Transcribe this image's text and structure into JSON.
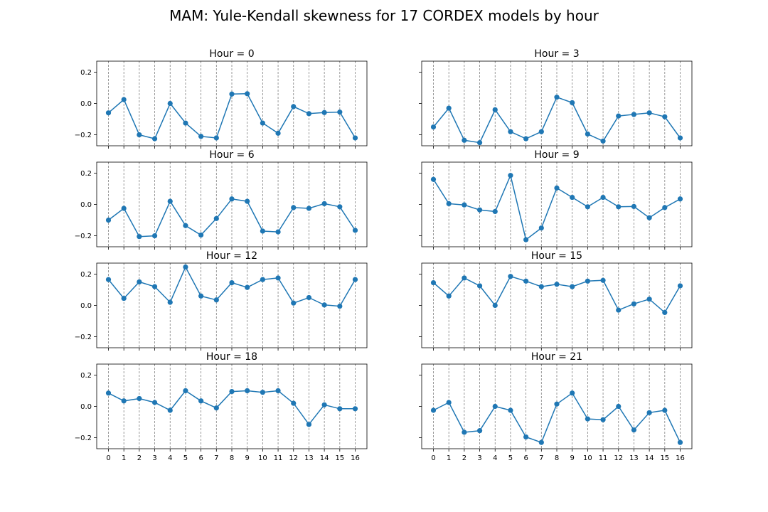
{
  "title": "MAM: Yule-Kendall skewness for 17 CORDEX models by hour",
  "chart_data": [
    {
      "type": "line",
      "title": "Hour = 0",
      "x": [
        0,
        1,
        2,
        3,
        4,
        5,
        6,
        7,
        8,
        9,
        10,
        11,
        12,
        13,
        14,
        15,
        16
      ],
      "values": [
        -0.06,
        0.025,
        -0.2,
        -0.225,
        0,
        -0.125,
        -0.21,
        -0.22,
        0.06,
        0.062,
        -0.125,
        -0.19,
        -0.02,
        -0.065,
        -0.058,
        -0.055,
        -0.22
      ],
      "ylim": [
        -0.27,
        0.27
      ],
      "yticks": [
        -0.2,
        0.0,
        0.2
      ],
      "ytick_labels": [
        "−0.2",
        "0.0",
        "0.2"
      ],
      "xticks_shown": false,
      "vertical_grid": true,
      "marker": "circle"
    },
    {
      "type": "line",
      "title": "Hour = 3",
      "x": [
        0,
        1,
        2,
        3,
        4,
        5,
        6,
        7,
        8,
        9,
        10,
        11,
        12,
        13,
        14,
        15,
        16
      ],
      "values": [
        -0.15,
        -0.03,
        -0.235,
        -0.25,
        -0.04,
        -0.18,
        -0.225,
        -0.18,
        0.04,
        0.005,
        -0.195,
        -0.24,
        -0.08,
        -0.07,
        -0.06,
        -0.085,
        -0.22
      ],
      "ylim": [
        -0.27,
        0.27
      ],
      "yticks": [
        -0.2,
        0.0,
        0.2
      ],
      "xticks_shown": false,
      "vertical_grid": true,
      "marker": "circle"
    },
    {
      "type": "line",
      "title": "Hour = 6",
      "x": [
        0,
        1,
        2,
        3,
        4,
        5,
        6,
        7,
        8,
        9,
        10,
        11,
        12,
        13,
        14,
        15,
        16
      ],
      "values": [
        -0.1,
        -0.025,
        -0.205,
        -0.2,
        0.02,
        -0.135,
        -0.195,
        -0.09,
        0.035,
        0.02,
        -0.17,
        -0.175,
        -0.02,
        -0.025,
        0.005,
        -0.015,
        -0.165
      ],
      "ylim": [
        -0.27,
        0.27
      ],
      "yticks": [
        -0.2,
        0.0,
        0.2
      ],
      "ytick_labels": [
        "−0.2",
        "0.0",
        "0.2"
      ],
      "xticks_shown": false,
      "vertical_grid": true,
      "marker": "circle"
    },
    {
      "type": "line",
      "title": "Hour = 9",
      "x": [
        0,
        1,
        2,
        3,
        4,
        5,
        6,
        7,
        8,
        9,
        10,
        11,
        12,
        13,
        14,
        15,
        16
      ],
      "values": [
        0.16,
        0.005,
        -0.003,
        -0.035,
        -0.045,
        0.185,
        -0.225,
        -0.15,
        0.105,
        0.045,
        -0.015,
        0.045,
        -0.015,
        -0.013,
        -0.085,
        -0.02,
        0.035
      ],
      "ylim": [
        -0.27,
        0.27
      ],
      "yticks": [
        -0.2,
        0.0,
        0.2
      ],
      "xticks_shown": false,
      "vertical_grid": true,
      "marker": "circle"
    },
    {
      "type": "line",
      "title": "Hour = 12",
      "x": [
        0,
        1,
        2,
        3,
        4,
        5,
        6,
        7,
        8,
        9,
        10,
        11,
        12,
        13,
        14,
        15,
        16
      ],
      "values": [
        0.165,
        0.045,
        0.15,
        0.12,
        0.02,
        0.245,
        0.06,
        0.035,
        0.145,
        0.115,
        0.165,
        0.175,
        0.015,
        0.05,
        0.003,
        -0.005,
        0.165
      ],
      "ylim": [
        -0.27,
        0.27
      ],
      "yticks": [
        -0.2,
        0.0,
        0.2
      ],
      "ytick_labels": [
        "−0.2",
        "0.0",
        "0.2"
      ],
      "xticks_shown": false,
      "vertical_grid": true,
      "marker": "circle"
    },
    {
      "type": "line",
      "title": "Hour = 15",
      "x": [
        0,
        1,
        2,
        3,
        4,
        5,
        6,
        7,
        8,
        9,
        10,
        11,
        12,
        13,
        14,
        15,
        16
      ],
      "values": [
        0.145,
        0.06,
        0.175,
        0.125,
        0,
        0.185,
        0.155,
        0.12,
        0.135,
        0.12,
        0.155,
        0.16,
        -0.03,
        0.01,
        0.04,
        -0.045,
        0.125
      ],
      "ylim": [
        -0.27,
        0.27
      ],
      "yticks": [
        -0.2,
        0.0,
        0.2
      ],
      "xticks_shown": false,
      "vertical_grid": true,
      "marker": "circle"
    },
    {
      "type": "line",
      "title": "Hour = 18",
      "x": [
        0,
        1,
        2,
        3,
        4,
        5,
        6,
        7,
        8,
        9,
        10,
        11,
        12,
        13,
        14,
        15,
        16
      ],
      "values": [
        0.085,
        0.035,
        0.05,
        0.025,
        -0.025,
        0.1,
        0.035,
        -0.01,
        0.095,
        0.1,
        0.09,
        0.1,
        0.02,
        -0.115,
        0.01,
        -0.015,
        -0.015
      ],
      "ylim": [
        -0.27,
        0.27
      ],
      "yticks": [
        -0.2,
        0.0,
        0.2
      ],
      "ytick_labels": [
        "−0.2",
        "0.0",
        "0.2"
      ],
      "xticks_shown": true,
      "xtick_labels": [
        "0",
        "1",
        "2",
        "3",
        "4",
        "5",
        "6",
        "7",
        "8",
        "9",
        "10",
        "11",
        "12",
        "13",
        "14",
        "15",
        "16"
      ],
      "vertical_grid": true,
      "marker": "circle"
    },
    {
      "type": "line",
      "title": "Hour = 21",
      "x": [
        0,
        1,
        2,
        3,
        4,
        5,
        6,
        7,
        8,
        9,
        10,
        11,
        12,
        13,
        14,
        15,
        16
      ],
      "values": [
        -0.025,
        0.025,
        -0.165,
        -0.155,
        0,
        -0.025,
        -0.195,
        -0.23,
        0.015,
        0.085,
        -0.08,
        -0.085,
        0,
        -0.15,
        -0.04,
        -0.025,
        -0.23
      ],
      "ylim": [
        -0.27,
        0.27
      ],
      "yticks": [
        -0.2,
        0.0,
        0.2
      ],
      "xticks_shown": true,
      "xtick_labels": [
        "0",
        "1",
        "2",
        "3",
        "4",
        "5",
        "6",
        "7",
        "8",
        "9",
        "10",
        "11",
        "12",
        "13",
        "14",
        "15",
        "16"
      ],
      "vertical_grid": true,
      "marker": "circle"
    }
  ],
  "colors": {
    "series": "#1f77b4",
    "grid": "#808080",
    "axes": "#000000"
  }
}
